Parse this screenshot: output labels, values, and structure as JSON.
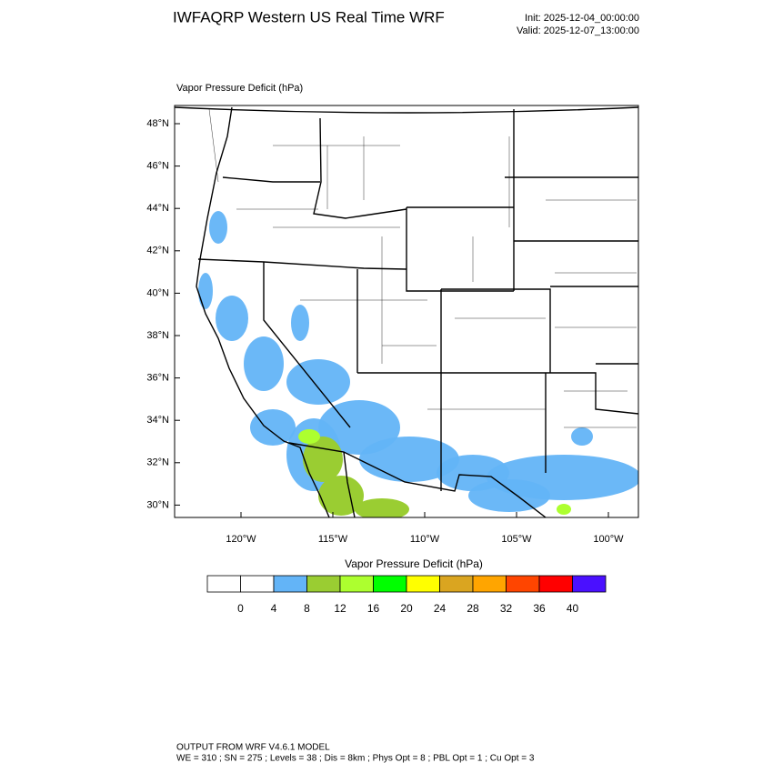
{
  "header": {
    "title": "IWFAQRP Western US Real Time WRF",
    "init": "Init: 2025-12-04_00:00:00",
    "valid": "Valid: 2025-12-07_13:00:00"
  },
  "map": {
    "subtitle": "Vapor Pressure Deficit   (hPa)",
    "lat_labels": [
      "48°N",
      "46°N",
      "44°N",
      "42°N",
      "40°N",
      "38°N",
      "36°N",
      "34°N",
      "32°N",
      "30°N"
    ],
    "lon_labels": [
      "120°W",
      "115°W",
      "110°W",
      "105°W",
      "100°W"
    ]
  },
  "colorbar": {
    "title": "Vapor Pressure Deficit  (hPa)",
    "levels": [
      0,
      4,
      8,
      12,
      16,
      20,
      24,
      28,
      32,
      36,
      40
    ],
    "colors": [
      "#ffffff",
      "#ffffff",
      "#63b4f7",
      "#9acd32",
      "#adff2f",
      "#00ff00",
      "#ffff00",
      "#daa520",
      "#ffa500",
      "#ff4500",
      "#ff0000",
      "#4a10ff"
    ]
  },
  "footer": {
    "line1": "OUTPUT FROM WRF V4.6.1 MODEL",
    "line2": "WE = 310 ; SN = 275 ; Levels = 38 ; Dis = 8km ; Phys Opt = 8 ; PBL Opt = 1 ; Cu Opt = 3"
  }
}
